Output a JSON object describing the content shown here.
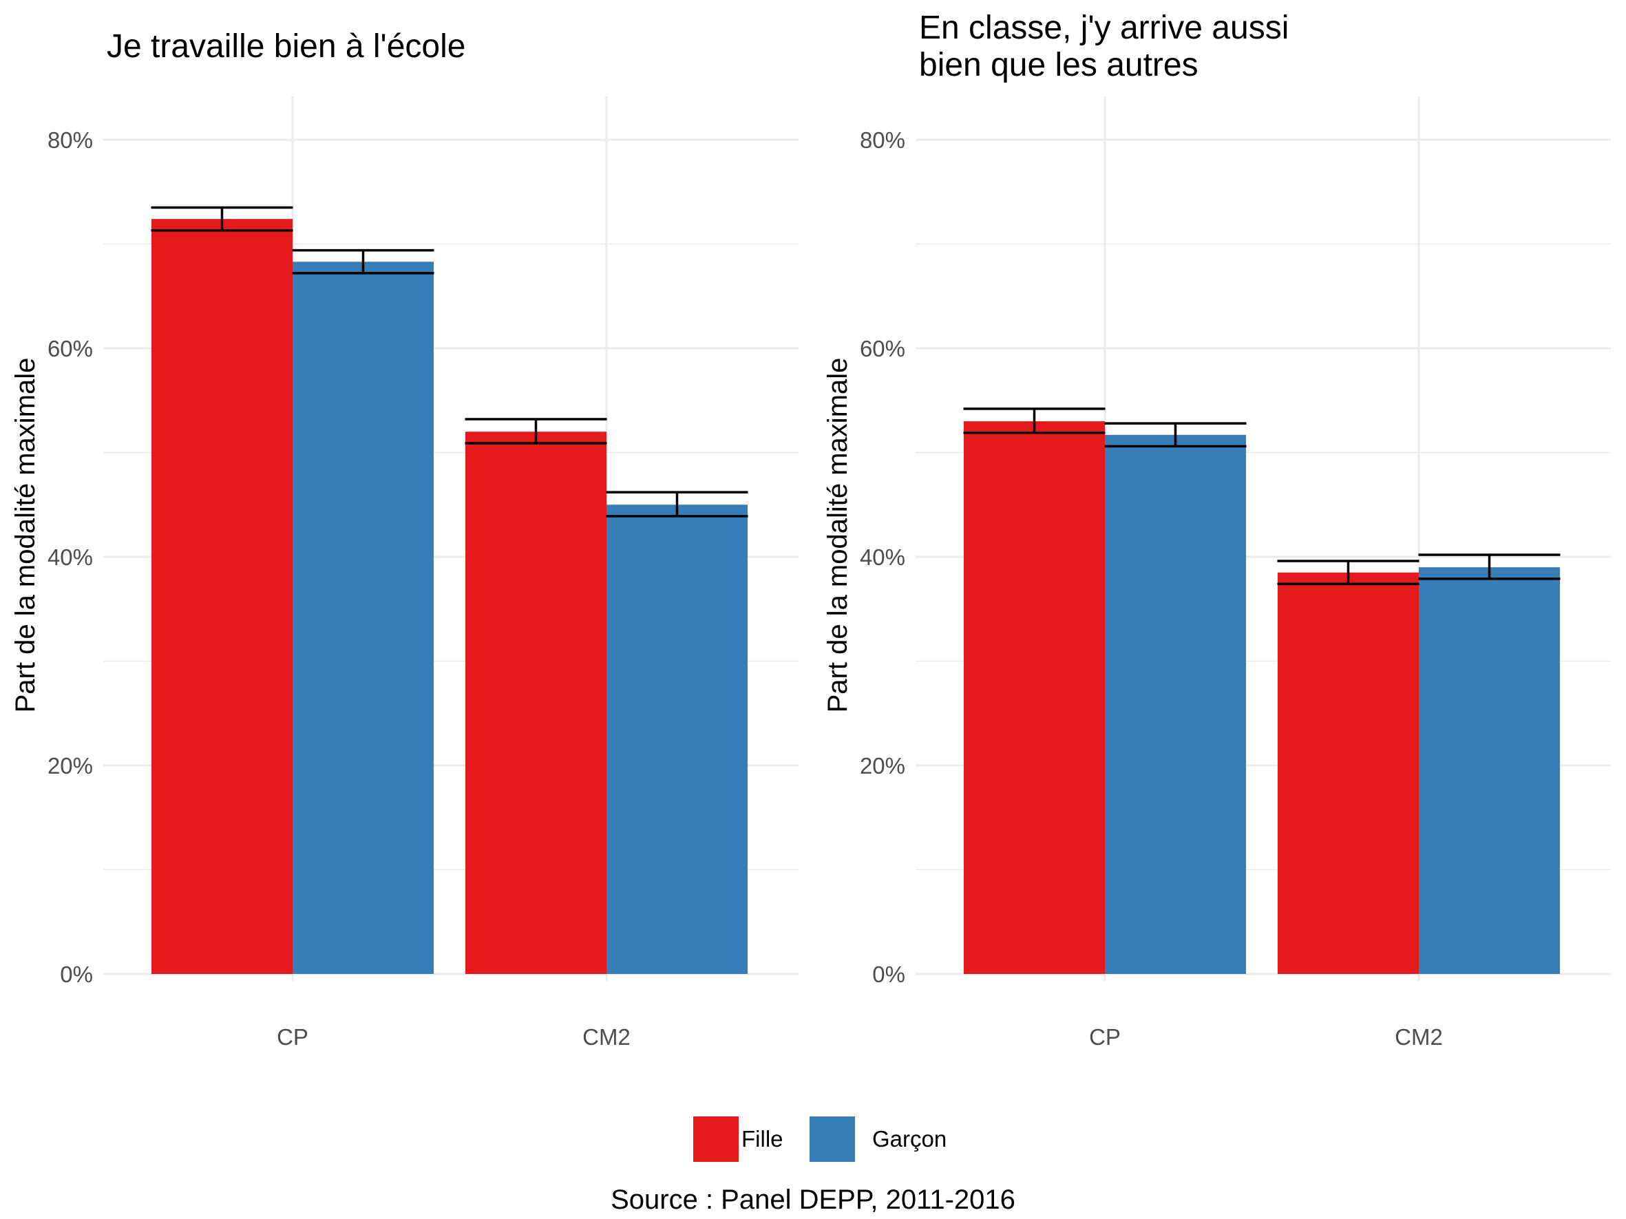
{
  "colors": {
    "Fille": "#e41a1c",
    "Garçon": "#377eb8",
    "gridline": "#ebebeb",
    "errorbar": "#000000"
  },
  "legend": {
    "position": "bottom",
    "items": [
      {
        "label": "Fille",
        "color": "#e41a1c"
      },
      {
        "label": "Garçon",
        "color": "#377eb8"
      }
    ]
  },
  "caption": "Source : Panel DEPP, 2011-2016",
  "chart_data": [
    {
      "type": "bar",
      "title": "Je travaille bien à l'école",
      "title_lines": [
        "Je travaille bien à l'école"
      ],
      "xlabel": "",
      "ylabel": "Part de la modalité maximale",
      "ylim": [
        0,
        0.8
      ],
      "yticks": [
        "0%",
        "20%",
        "40%",
        "60%",
        "80%"
      ],
      "grid": true,
      "categories": [
        "CP",
        "CM2"
      ],
      "series": [
        {
          "name": "Fille",
          "values": [
            0.724,
            0.52
          ],
          "error_low": [
            0.713,
            0.509
          ],
          "error_high": [
            0.735,
            0.532
          ]
        },
        {
          "name": "Garçon",
          "values": [
            0.683,
            0.45
          ],
          "error_low": [
            0.672,
            0.439
          ],
          "error_high": [
            0.694,
            0.462
          ]
        }
      ]
    },
    {
      "type": "bar",
      "title": "En classe, j'y arrive aussi bien que les autres",
      "title_lines": [
        "En classe, j'y arrive aussi",
        "bien que les autres"
      ],
      "xlabel": "",
      "ylabel": "Part de la modalité maximale",
      "ylim": [
        0,
        0.8
      ],
      "yticks": [
        "0%",
        "20%",
        "40%",
        "60%",
        "80%"
      ],
      "grid": true,
      "categories": [
        "CP",
        "CM2"
      ],
      "series": [
        {
          "name": "Fille",
          "values": [
            0.53,
            0.385
          ],
          "error_low": [
            0.519,
            0.374
          ],
          "error_high": [
            0.542,
            0.396
          ]
        },
        {
          "name": "Garçon",
          "values": [
            0.517,
            0.39
          ],
          "error_low": [
            0.506,
            0.379
          ],
          "error_high": [
            0.528,
            0.402
          ]
        }
      ]
    }
  ]
}
